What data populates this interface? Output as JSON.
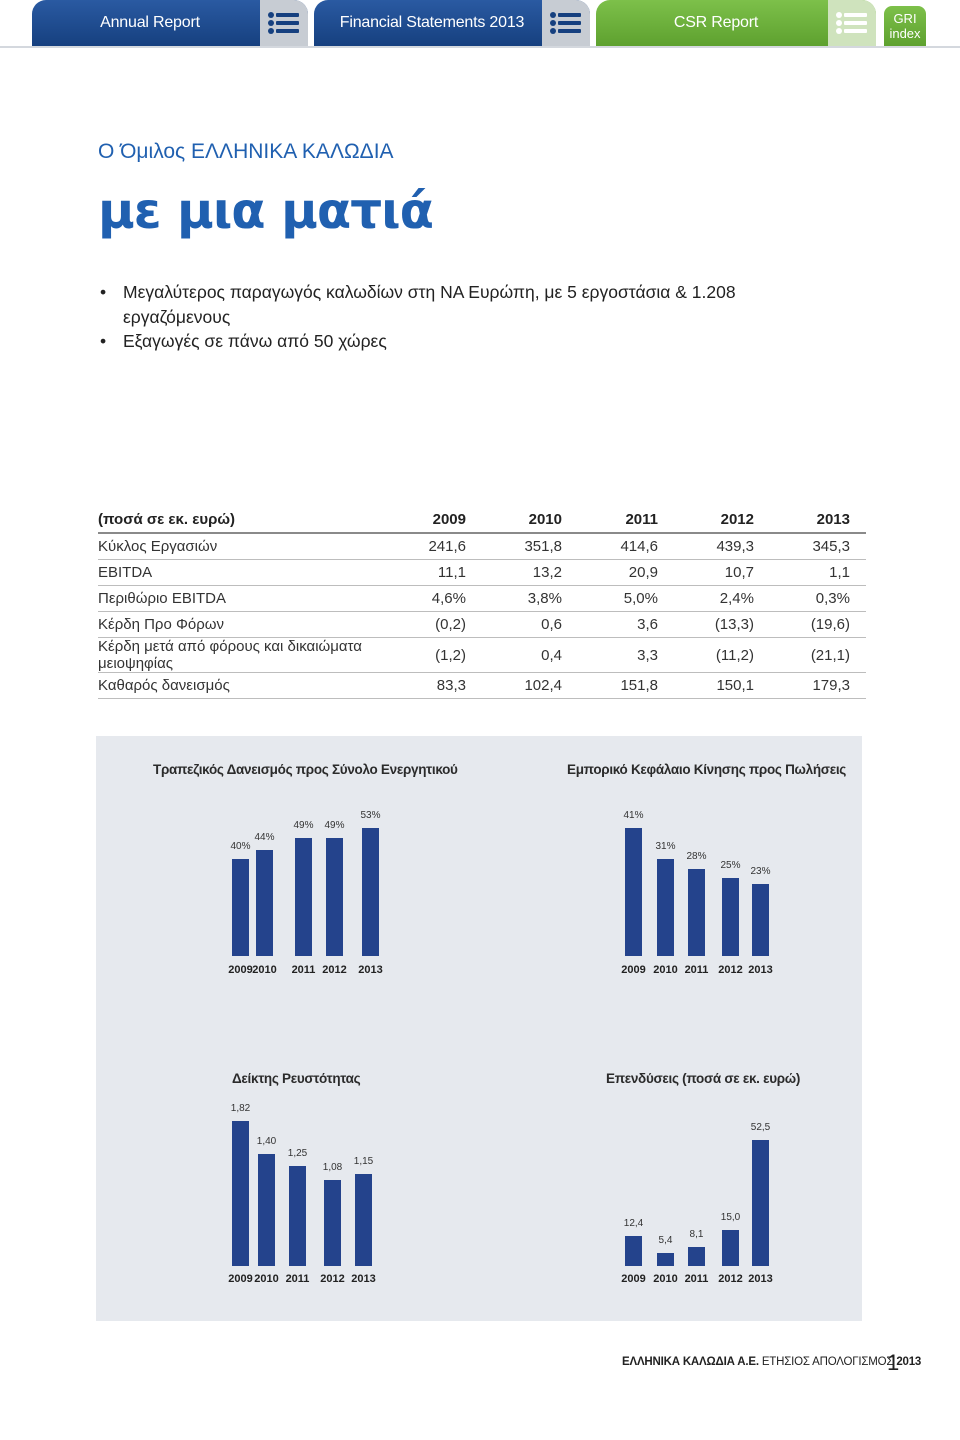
{
  "nav": {
    "tabs": [
      {
        "label": "Annual Report"
      },
      {
        "label": "Financial Statements 2013"
      },
      {
        "label": "CSR Report"
      }
    ],
    "gri": {
      "line1": "GRI",
      "line2": "index"
    }
  },
  "heading": {
    "subtitle": "Ο Όμιλος ΕΛΛΗΝΙΚΑ ΚΑΛΩΔΙΑ",
    "title": "με μια ματιά"
  },
  "bullets": [
    "Μεγαλύτερος παραγωγός καλωδίων στη ΝΑ Ευρώπη, με 5 εργοστάσια & 1.208 εργαζόμενους",
    "Εξαγωγές σε πάνω από 50 χώρες"
  ],
  "table": {
    "header": [
      "(ποσά σε εκ. ευρώ)",
      "2009",
      "2010",
      "2011",
      "2012",
      "2013"
    ],
    "rows": [
      [
        "Κύκλος Εργασιών",
        "241,6",
        "351,8",
        "414,6",
        "439,3",
        "345,3"
      ],
      [
        "EBITDA",
        "11,1",
        "13,2",
        "20,9",
        "10,7",
        "1,1"
      ],
      [
        "Περιθώριο EBITDA",
        "4,6%",
        "3,8%",
        "5,0%",
        "2,4%",
        "0,3%"
      ],
      [
        "Κέρδη Προ Φόρων",
        "(0,2)",
        "0,6",
        "3,6",
        "(13,3)",
        "(19,6)"
      ],
      [
        "Κέρδη μετά από φόρους και δικαιώματα μειοψηφίας",
        "(1,2)",
        "0,4",
        "3,3",
        "(11,2)",
        "(21,1)"
      ],
      [
        "Καθαρός δανεισμός",
        "83,3",
        "102,4",
        "151,8",
        "150,1",
        "179,3"
      ]
    ]
  },
  "chart_data": [
    {
      "type": "bar",
      "title": "Τραπεζικός Δανεισμός προς Σύνολο Ενεργητικού",
      "categories": [
        "2009",
        "2010",
        "2011",
        "2012",
        "2013"
      ],
      "values": [
        40,
        44,
        49,
        49,
        53
      ],
      "labels": [
        "40%",
        "44%",
        "49%",
        "49%",
        "53%"
      ],
      "color": "#24438c"
    },
    {
      "type": "bar",
      "title": "Εμπορικό Κεφάλαιο Κίνησης προς Πωλήσεις",
      "categories": [
        "2009",
        "2010",
        "2011",
        "2012",
        "2013"
      ],
      "values": [
        41,
        31,
        28,
        25,
        23
      ],
      "labels": [
        "41%",
        "31%",
        "28%",
        "25%",
        "23%"
      ],
      "color": "#24438c"
    },
    {
      "type": "bar",
      "title": "Δείκτης Ρευστότητας",
      "categories": [
        "2009",
        "2010",
        "2011",
        "2012",
        "2013"
      ],
      "values": [
        1.82,
        1.4,
        1.25,
        1.08,
        1.15
      ],
      "labels": [
        "1,82",
        "1,40",
        "1,25",
        "1,08",
        "1,15"
      ],
      "color": "#24438c"
    },
    {
      "type": "bar",
      "title": "Επενδύσεις (ποσά σε εκ. ευρώ)",
      "categories": [
        "2009",
        "2010",
        "2011",
        "2012",
        "2013"
      ],
      "values": [
        12.4,
        5.4,
        8.1,
        15.0,
        52.5
      ],
      "labels": [
        "12,4",
        "5,4",
        "8,1",
        "15,0",
        "52,5"
      ],
      "color": "#24438c"
    }
  ],
  "footer": {
    "company": "ΕΛΛΗΝΙΚΑ ΚΑΛΩΔΙΑ Α.Ε.",
    "report": "ΕΤΗΣΙΟΣ ΑΠΟΛΟΓΙΣΜΟΣ",
    "year": "2013",
    "page": "1"
  }
}
